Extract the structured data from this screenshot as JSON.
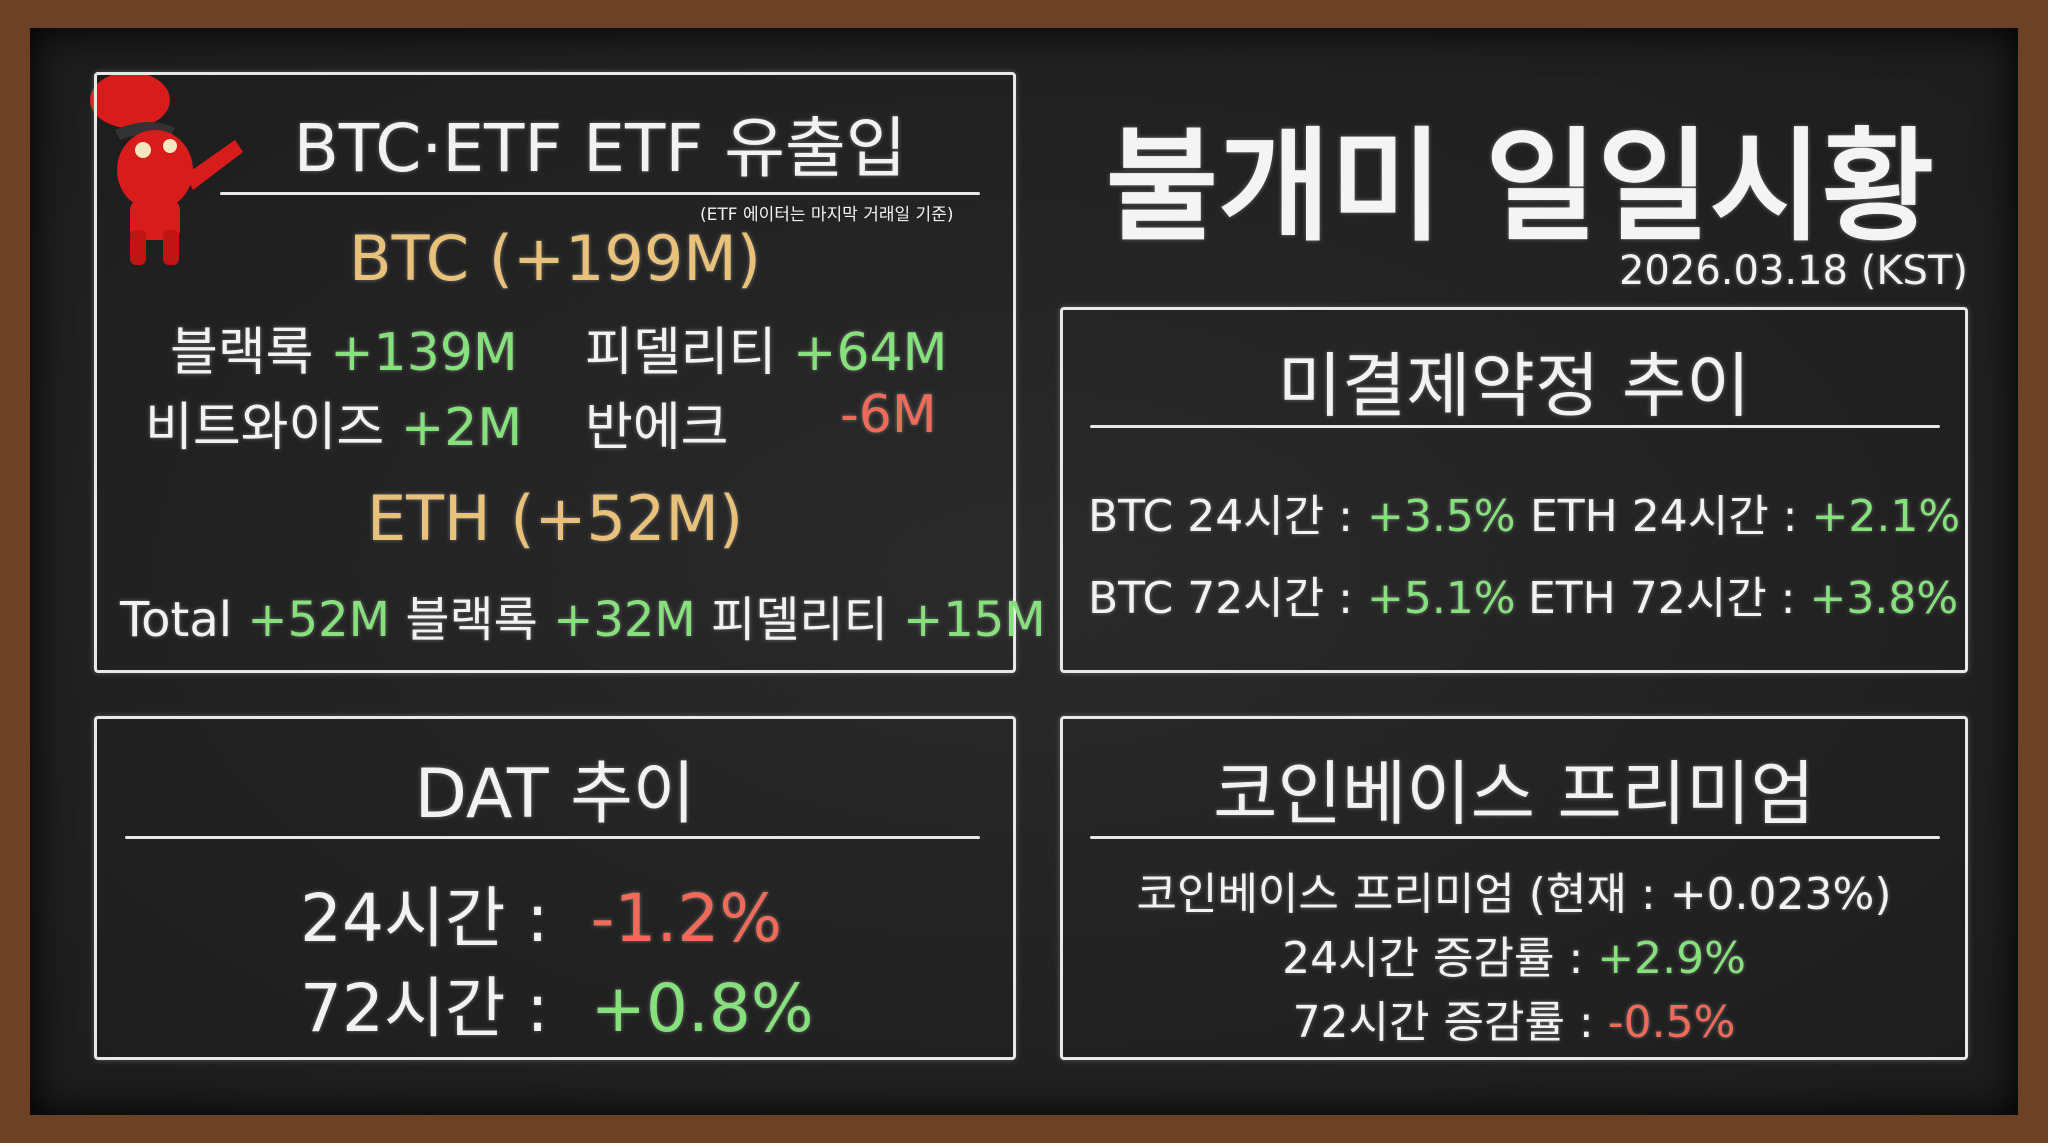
{
  "header": {
    "title": "불개미 일일시황",
    "date": "2026.03.18 (KST)"
  },
  "etf": {
    "title": "BTC·ETF ETF 유출입",
    "note": "(ETF 에이터는 마지막 거래일 기준)",
    "btc_heading": "BTC (+199M)",
    "btc_rows": [
      [
        {
          "name": "블랙록",
          "value": "+139M",
          "tone": "up"
        },
        {
          "name": "피델리티",
          "value": "+64M",
          "tone": "up"
        }
      ],
      [
        {
          "name": "비트와이즈",
          "value": "+2M",
          "tone": "up"
        },
        {
          "name": "반에크",
          "value": "-6M",
          "tone": "down"
        }
      ]
    ],
    "eth_heading": "ETH (+52M)",
    "eth_row": [
      {
        "name": "Total",
        "value": "+52M"
      },
      {
        "name": "블랙록",
        "value": "+32M"
      },
      {
        "name": "피델리티",
        "value": "+15M"
      }
    ]
  },
  "oi": {
    "title": "미결제약정 추이",
    "items": [
      {
        "label": "BTC 24시간 :",
        "value": "+3.5%"
      },
      {
        "label": "ETH 24시간 :",
        "value": "+2.1%"
      },
      {
        "label": "BTC 72시간 :",
        "value": "+5.1%"
      },
      {
        "label": "ETH 72시간 :",
        "value": "+3.8%"
      }
    ]
  },
  "dat": {
    "title": "DAT 추이",
    "items": [
      {
        "label": "24시간 :",
        "value": "-1.2%",
        "tone": "down"
      },
      {
        "label": "72시간 :",
        "value": "+0.8%",
        "tone": "up"
      }
    ]
  },
  "coinbase": {
    "title": "코인베이스 프리미엄",
    "current": "코인베이스 프리미엄 (현재 : +0.023%)",
    "items": [
      {
        "label": "24시간 증감률 :",
        "value": "+2.9%",
        "tone": "up"
      },
      {
        "label": "72시간 증감률 :",
        "value": "-0.5%",
        "tone": "down"
      }
    ]
  },
  "colors": {
    "up": "#86e07c",
    "down": "#f06a5a",
    "heading": "#e8c27a",
    "frame": "#6b4226",
    "board": "#1f1f1f"
  },
  "mascot": {
    "icon": "red-ant-mascot-icon"
  }
}
